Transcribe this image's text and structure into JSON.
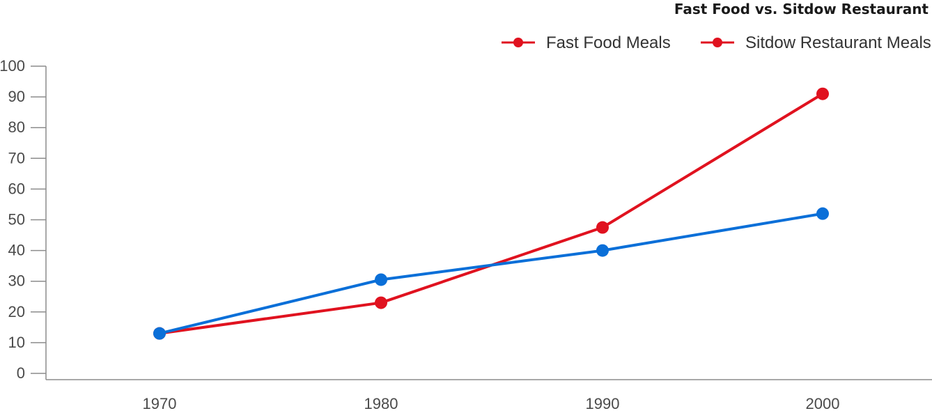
{
  "chart_data": {
    "type": "line",
    "title": "Fast Food vs. Sitdow Restaurant",
    "xlabel": "",
    "ylabel": "",
    "categories": [
      "1970",
      "1980",
      "1990",
      "2000"
    ],
    "ylim": [
      0,
      100
    ],
    "yticks": [
      "0",
      "10",
      "20",
      "30",
      "40",
      "50",
      "60",
      "70",
      "80",
      "90",
      "100"
    ],
    "grid": false,
    "legend_position": "top-right",
    "series": [
      {
        "name": "Fast Food Meals",
        "color": "#e0121f",
        "legend_color": "#e0121f",
        "values": [
          13,
          23,
          47.5,
          91
        ]
      },
      {
        "name": "Sitdow Restaurant Meals",
        "color": "#0a6fd8",
        "legend_color": "#e0121f",
        "values": [
          13,
          30.5,
          40,
          52
        ]
      }
    ]
  }
}
